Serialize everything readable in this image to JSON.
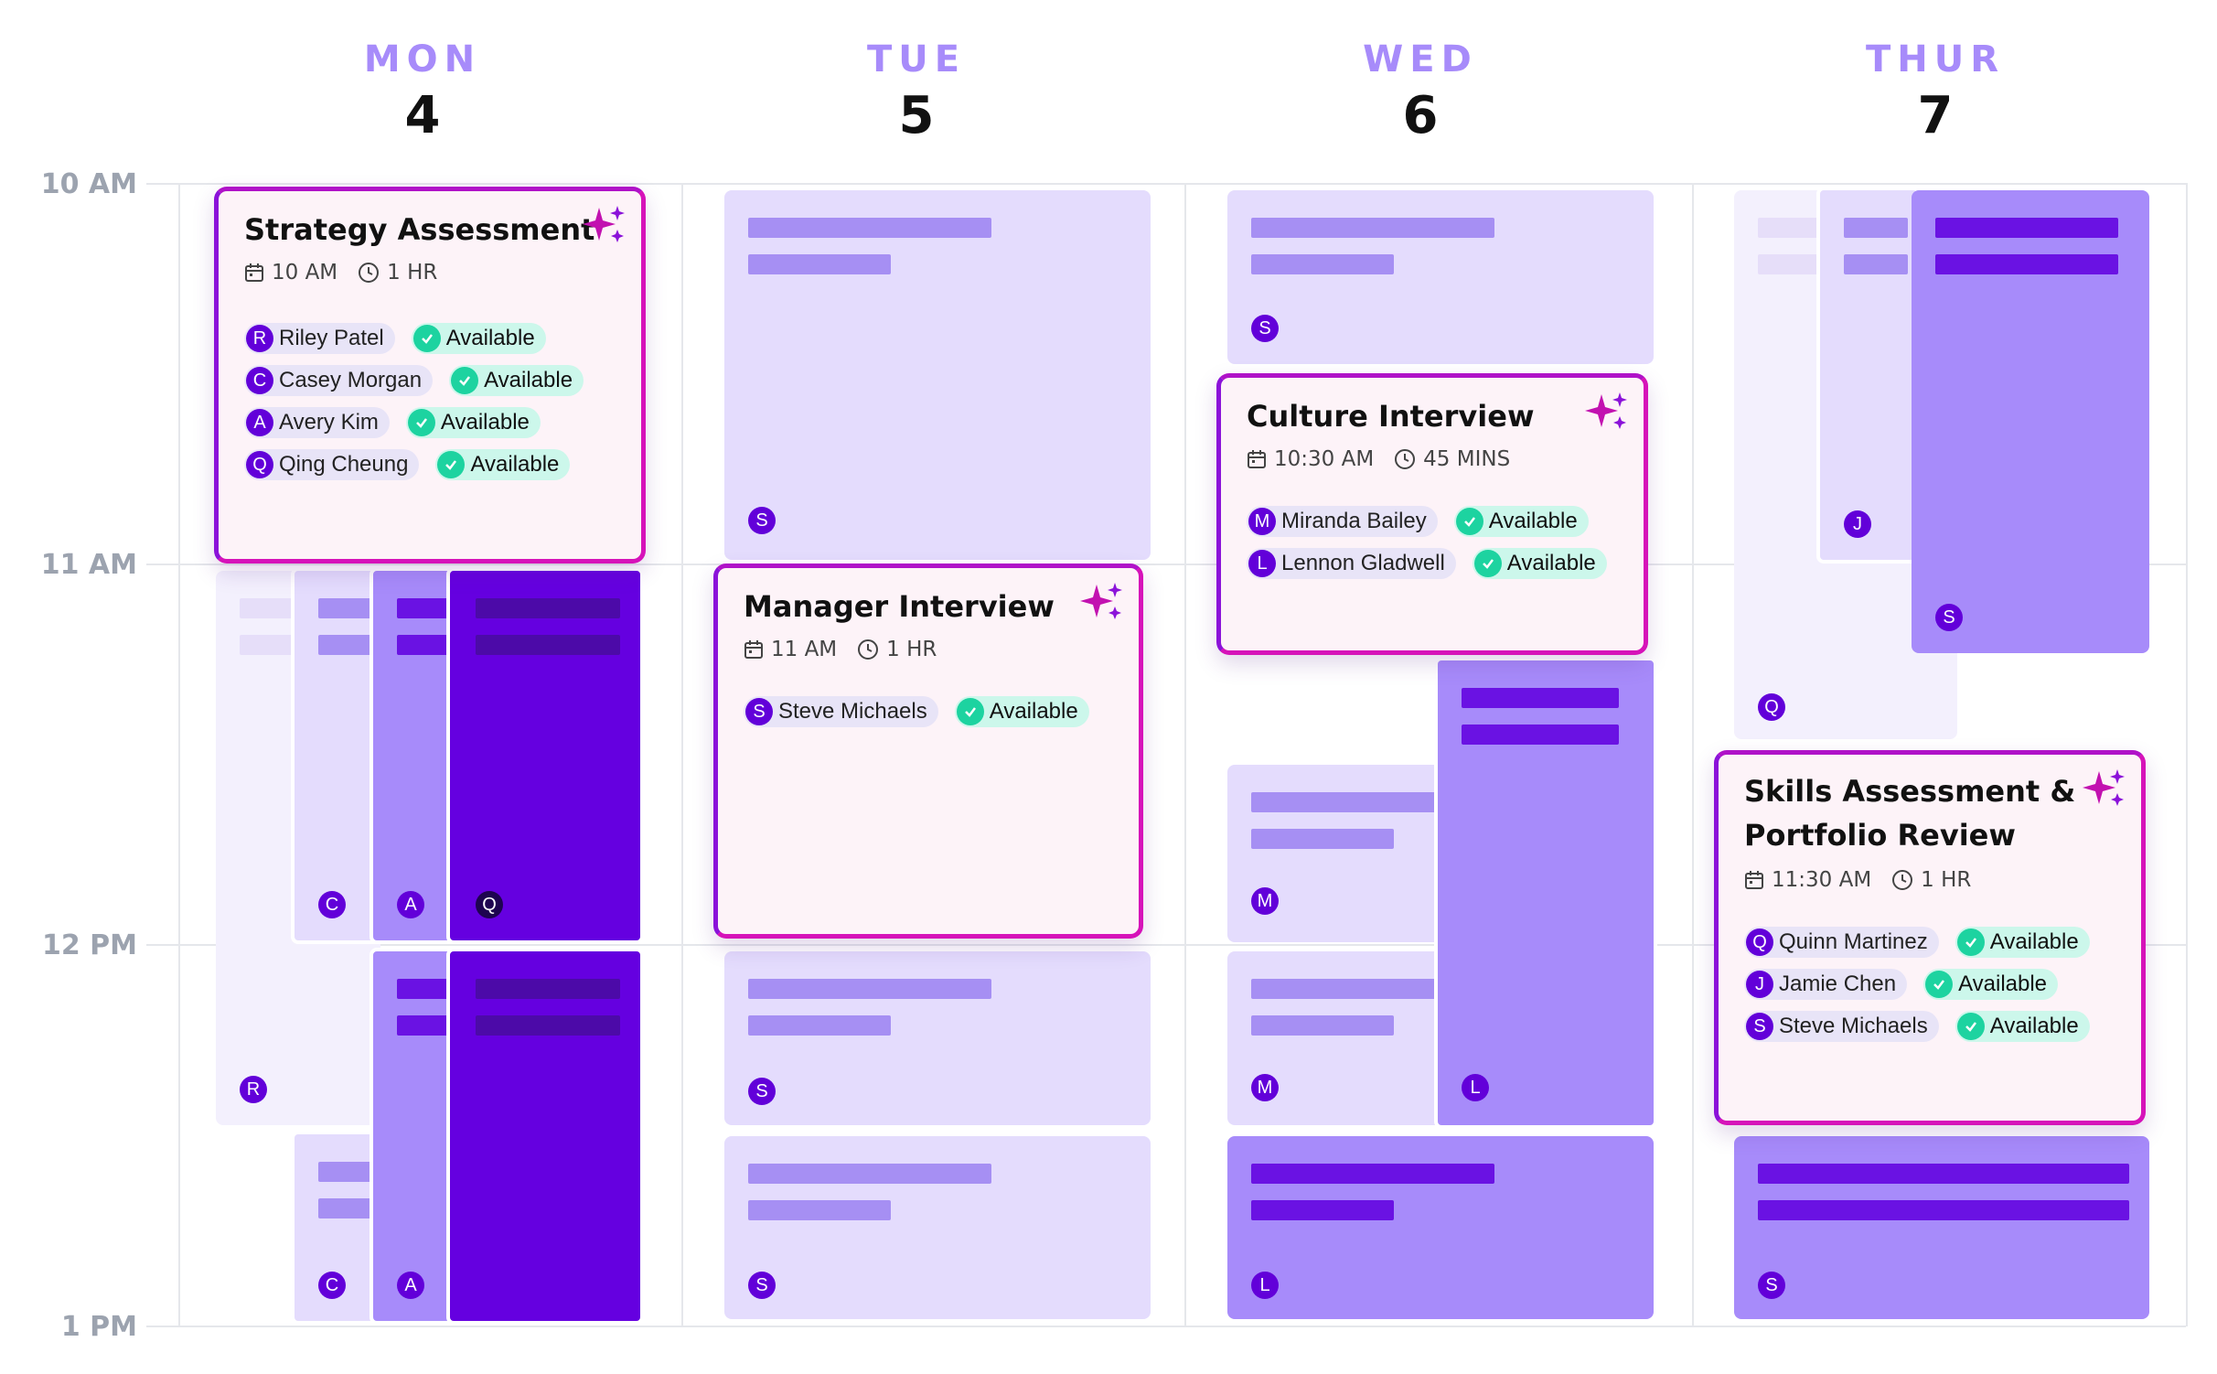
{
  "days": [
    {
      "name": "MON",
      "num": "4"
    },
    {
      "name": "TUE",
      "num": "5"
    },
    {
      "name": "WED",
      "num": "6"
    },
    {
      "name": "THUR",
      "num": "7"
    }
  ],
  "times": [
    "10 AM",
    "11 AM",
    "12 PM",
    "1 PM"
  ],
  "events": {
    "strategy": {
      "title": "Strategy Assessment",
      "time": "10 AM",
      "duration": "1 HR",
      "attendees": [
        {
          "initial": "R",
          "name": "Riley Patel",
          "status": "Available"
        },
        {
          "initial": "C",
          "name": "Casey Morgan",
          "status": "Available"
        },
        {
          "initial": "A",
          "name": "Avery Kim",
          "status": "Available"
        },
        {
          "initial": "Q",
          "name": "Qing Cheung",
          "status": "Available"
        }
      ]
    },
    "manager": {
      "title": "Manager Interview",
      "time": "11 AM",
      "duration": "1 HR",
      "attendees": [
        {
          "initial": "S",
          "name": "Steve Michaels",
          "status": "Available"
        }
      ]
    },
    "culture": {
      "title": "Culture Interview",
      "time": "10:30 AM",
      "duration": "45 MINS",
      "attendees": [
        {
          "initial": "M",
          "name": "Miranda Bailey",
          "status": "Available"
        },
        {
          "initial": "L",
          "name": "Lennon Gladwell",
          "status": "Available"
        }
      ]
    },
    "skills": {
      "title_line1": "Skills Assessment &",
      "title_line2": "Portfolio Review",
      "time": "11:30 AM",
      "duration": "1 HR",
      "attendees": [
        {
          "initial": "Q",
          "name": "Quinn Martinez",
          "status": "Available"
        },
        {
          "initial": "J",
          "name": "Jamie Chen",
          "status": "Available"
        },
        {
          "initial": "S",
          "name": "Steve Michaels",
          "status": "Available"
        }
      ]
    }
  },
  "busy_avatars": {
    "mon": {
      "c1": "C",
      "a1": "A",
      "q1": "Q",
      "r1": "R",
      "c2": "C",
      "a2": "A"
    },
    "tue": {
      "s1": "S",
      "s2": "S",
      "s3": "S"
    },
    "wed": {
      "s1": "S",
      "m1": "M",
      "m2": "M",
      "l1": "L",
      "l2": "L"
    },
    "thu": {
      "j1": "J",
      "s1": "S",
      "q1": "Q",
      "s2": "S"
    }
  },
  "colors": {
    "accent_pink": "#d613b9",
    "accent_purple": "#6500e0",
    "available_green": "#1dd3a0"
  }
}
